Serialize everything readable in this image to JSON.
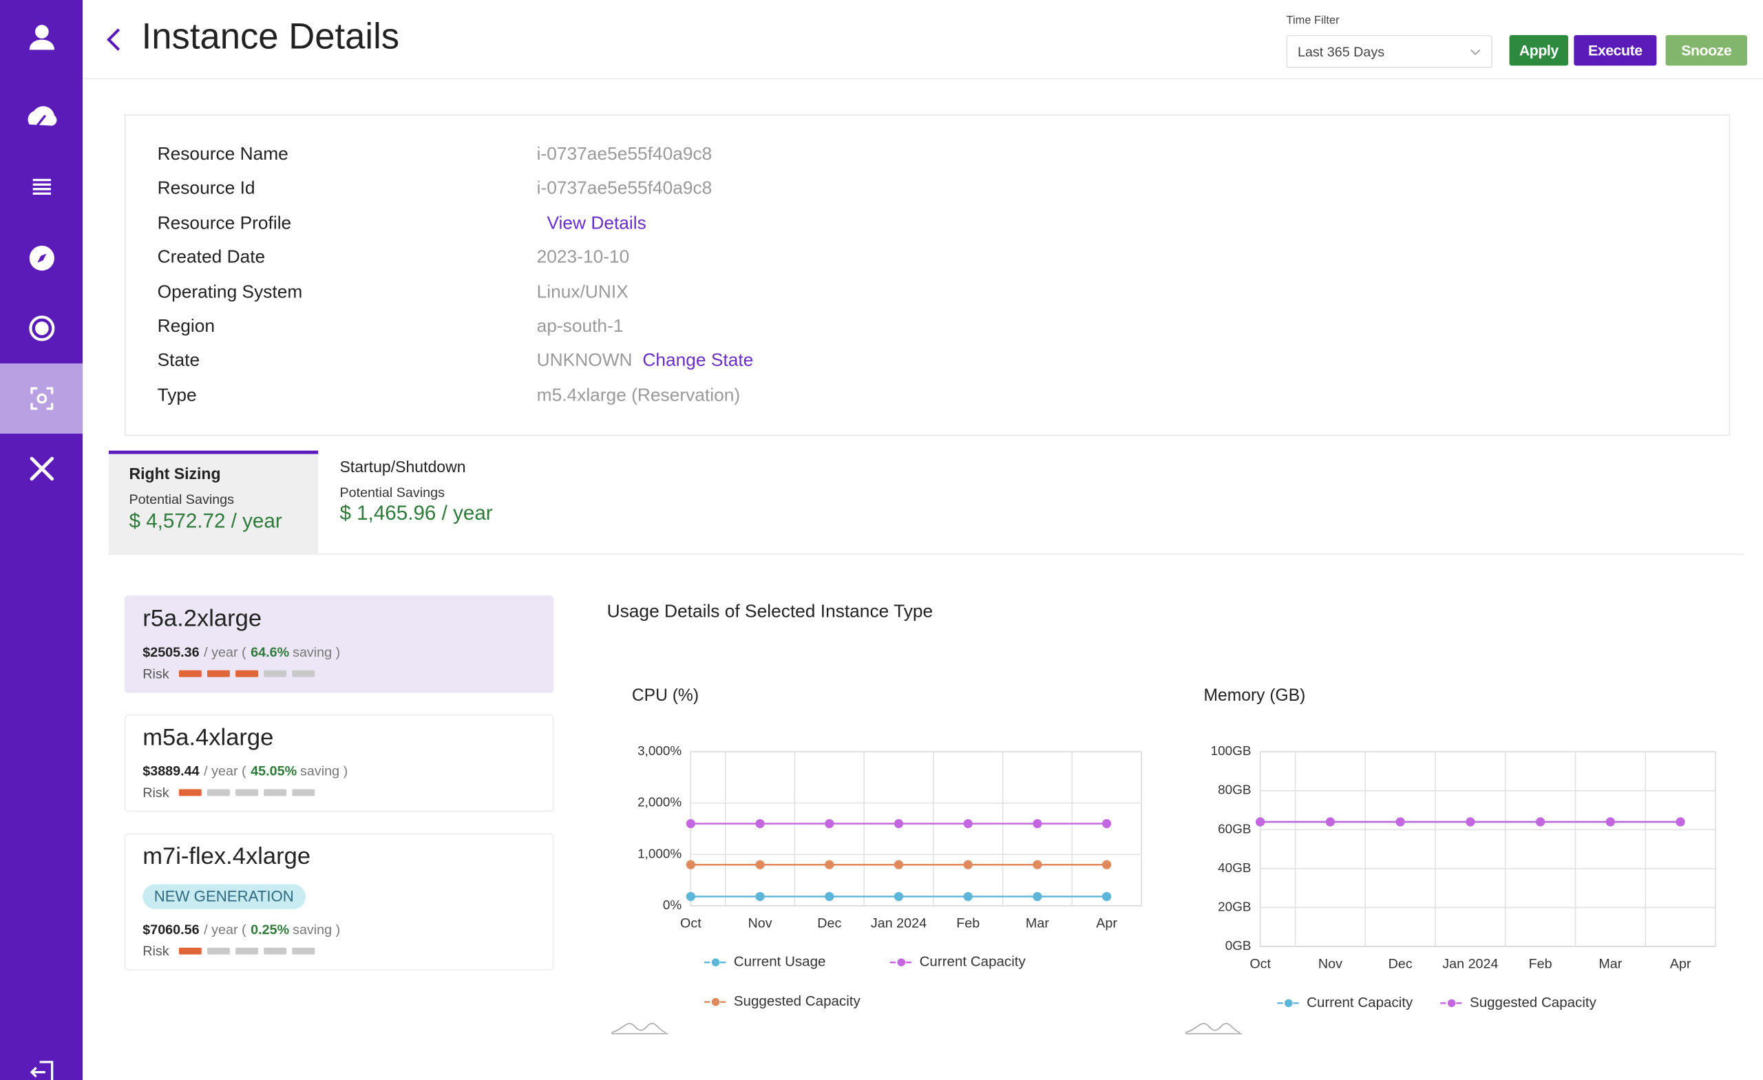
{
  "header": {
    "title": "Instance Details"
  },
  "filter": {
    "label": "Time Filter",
    "value": "Last 365 Days"
  },
  "buttons": [
    "Apply",
    "Execute",
    "Snooze"
  ],
  "details": [
    {
      "label": "Resource Name",
      "value": "i-0737ae5e55f40a9c8"
    },
    {
      "label": "Resource Id",
      "value": "i-0737ae5e55f40a9c8"
    },
    {
      "label": "Resource Profile",
      "link": "View Details"
    },
    {
      "label": "Created Date",
      "value": "2023-10-10"
    },
    {
      "label": "Operating System",
      "value": "Linux/UNIX"
    },
    {
      "label": "Region",
      "value": "ap-south-1"
    },
    {
      "label": "State",
      "value": "UNKNOWN",
      "link": "Change State"
    },
    {
      "label": "Type",
      "value": "m5.4xlarge (Reservation)"
    }
  ],
  "tabs": [
    {
      "title": "Right Sizing",
      "label": "Potential Savings",
      "amount": "$ 4,572.72 / year"
    },
    {
      "title": "Startup/Shutdown",
      "label": "Potential Savings",
      "amount": "$ 1,465.96 / year"
    }
  ],
  "instances": [
    {
      "name": "r5a.2xlarge",
      "price": "$2505.36",
      "per": "/ year (",
      "saving": "64.6%",
      "suffix": "saving )",
      "risk_label": "Risk",
      "risk": 3
    },
    {
      "name": "m5a.4xlarge",
      "price": "$3889.44",
      "per": "/ year (",
      "saving": "45.05%",
      "suffix": "saving )",
      "risk_label": "Risk",
      "risk": 1
    },
    {
      "name": "m7i-flex.4xlarge",
      "badge": "NEW GENERATION",
      "price": "$7060.56",
      "per": "/ year (",
      "saving": "0.25%",
      "suffix": "saving )",
      "risk_label": "Risk",
      "risk": 1
    }
  ],
  "usage": {
    "title": "Usage Details of Selected Instance Type"
  },
  "chart_data": [
    {
      "type": "line",
      "title": "CPU (%)",
      "categories": [
        "Oct",
        "Nov",
        "Dec",
        "Jan 2024",
        "Feb",
        "Mar",
        "Apr"
      ],
      "ylim": [
        0,
        3000
      ],
      "yticks": [
        {
          "value": 0,
          "label": "0%"
        },
        {
          "value": 1000,
          "label": "1,000%"
        },
        {
          "value": 2000,
          "label": "2,000%"
        },
        {
          "value": 3000,
          "label": "3,000%"
        }
      ],
      "grid": true,
      "series": [
        {
          "name": "Current Usage",
          "color": "#5db5d8",
          "values": [
            180,
            180,
            180,
            180,
            180,
            180,
            180
          ]
        },
        {
          "name": "Current Capacity",
          "color": "#c466e0",
          "values": [
            1600,
            1600,
            1600,
            1600,
            1600,
            1600,
            1600
          ]
        },
        {
          "name": "Suggested Capacity",
          "color": "#e0895c",
          "values": [
            800,
            800,
            800,
            800,
            800,
            800,
            800
          ]
        }
      ]
    },
    {
      "type": "line",
      "title": "Memory (GB)",
      "categories": [
        "Oct",
        "Nov",
        "Dec",
        "Jan 2024",
        "Feb",
        "Mar",
        "Apr"
      ],
      "ylim": [
        0,
        100
      ],
      "yticks": [
        {
          "value": 0,
          "label": "0GB"
        },
        {
          "value": 20,
          "label": "20GB"
        },
        {
          "value": 40,
          "label": "40GB"
        },
        {
          "value": 60,
          "label": "60GB"
        },
        {
          "value": 80,
          "label": "80GB"
        },
        {
          "value": 100,
          "label": "100GB"
        }
      ],
      "grid": true,
      "series": [
        {
          "name": "Current Capacity",
          "color": "#5db5d8",
          "values": [
            64,
            64,
            64,
            64,
            64,
            64,
            64
          ]
        },
        {
          "name": "Suggested Capacity",
          "color": "#c466e0",
          "values": [
            64,
            64,
            64,
            64,
            64,
            64,
            64
          ]
        }
      ]
    }
  ]
}
